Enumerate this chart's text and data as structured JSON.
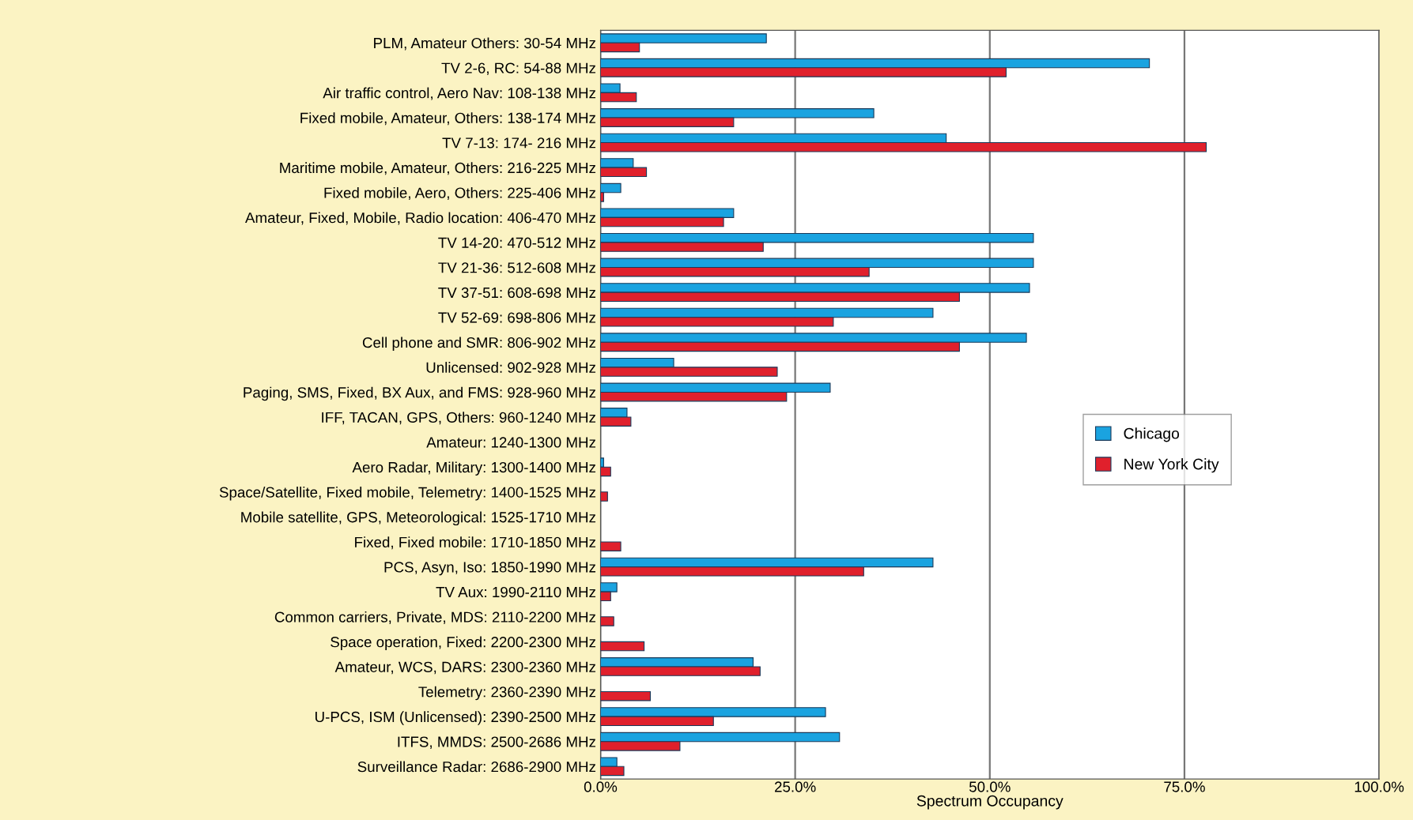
{
  "chart_data": {
    "type": "bar",
    "orientation": "horizontal",
    "xlabel": "Spectrum Occupancy",
    "categories": [
      "PLM, Amateur Others: 30-54 MHz",
      "TV 2-6, RC: 54-88 MHz",
      "Air traffic control, Aero Nav: 108-138 MHz",
      "Fixed mobile, Amateur, Others: 138-174 MHz",
      "TV 7-13: 174- 216 MHz",
      "Maritime mobile, Amateur, Others: 216-225 MHz",
      "Fixed mobile, Aero, Others: 225-406 MHz",
      "Amateur, Fixed, Mobile, Radio location: 406-470 MHz",
      "TV 14-20: 470-512 MHz",
      "TV 21-36: 512-608 MHz",
      "TV 37-51: 608-698 MHz",
      "TV 52-69: 698-806 MHz",
      "Cell phone and SMR: 806-902 MHz",
      "Unlicensed: 902-928 MHz",
      "Paging, SMS, Fixed, BX Aux, and FMS: 928-960 MHz",
      "IFF, TACAN, GPS, Others: 960-1240 MHz",
      "Amateur: 1240-1300 MHz",
      "Aero Radar, Military: 1300-1400 MHz",
      "Space/Satellite, Fixed mobile, Telemetry: 1400-1525 MHz",
      "Mobile satellite, GPS, Meteorological: 1525-1710 MHz",
      "Fixed, Fixed mobile: 1710-1850 MHz",
      "PCS, Asyn, Iso: 1850-1990 MHz",
      "TV Aux: 1990-2110 MHz",
      "Common carriers, Private, MDS: 2110-2200 MHz",
      "Space operation, Fixed: 2200-2300 MHz",
      "Amateur, WCS, DARS: 2300-2360 MHz",
      "Telemetry: 2360-2390 MHz",
      "U-PCS, ISM (Unlicensed): 2390-2500 MHz",
      "ITFS, MMDS: 2500-2686 MHz",
      "Surveillance Radar: 2686-2900 MHz"
    ],
    "series": [
      {
        "name": "Chicago",
        "color": "#1aa3e0",
        "values": [
          21.3,
          70.5,
          2.5,
          35.1,
          44.4,
          4.2,
          2.6,
          17.1,
          55.6,
          55.6,
          55.1,
          42.7,
          54.7,
          9.4,
          29.5,
          3.4,
          0,
          0.4,
          0,
          0,
          0,
          42.7,
          2.1,
          0,
          0,
          19.6,
          0,
          28.9,
          30.7,
          2.1
        ]
      },
      {
        "name": "New York City",
        "color": "#e0202c",
        "values": [
          5.0,
          52.1,
          4.6,
          17.1,
          77.8,
          5.9,
          0.4,
          15.8,
          20.9,
          34.5,
          46.1,
          29.9,
          46.1,
          22.7,
          23.9,
          3.9,
          0,
          1.3,
          0.9,
          0,
          2.6,
          33.8,
          1.3,
          1.7,
          5.6,
          20.5,
          6.4,
          14.5,
          10.2,
          3.0
        ]
      }
    ],
    "xlim": [
      0,
      100
    ],
    "xticks": [
      {
        "value": 0,
        "label": "0.0%"
      },
      {
        "value": 25,
        "label": "25.0%"
      },
      {
        "value": 50,
        "label": "50.0%"
      },
      {
        "value": 75,
        "label": "75.0%"
      },
      {
        "value": 100,
        "label": "100.0%"
      }
    ],
    "grid": "x",
    "legend": "right"
  }
}
